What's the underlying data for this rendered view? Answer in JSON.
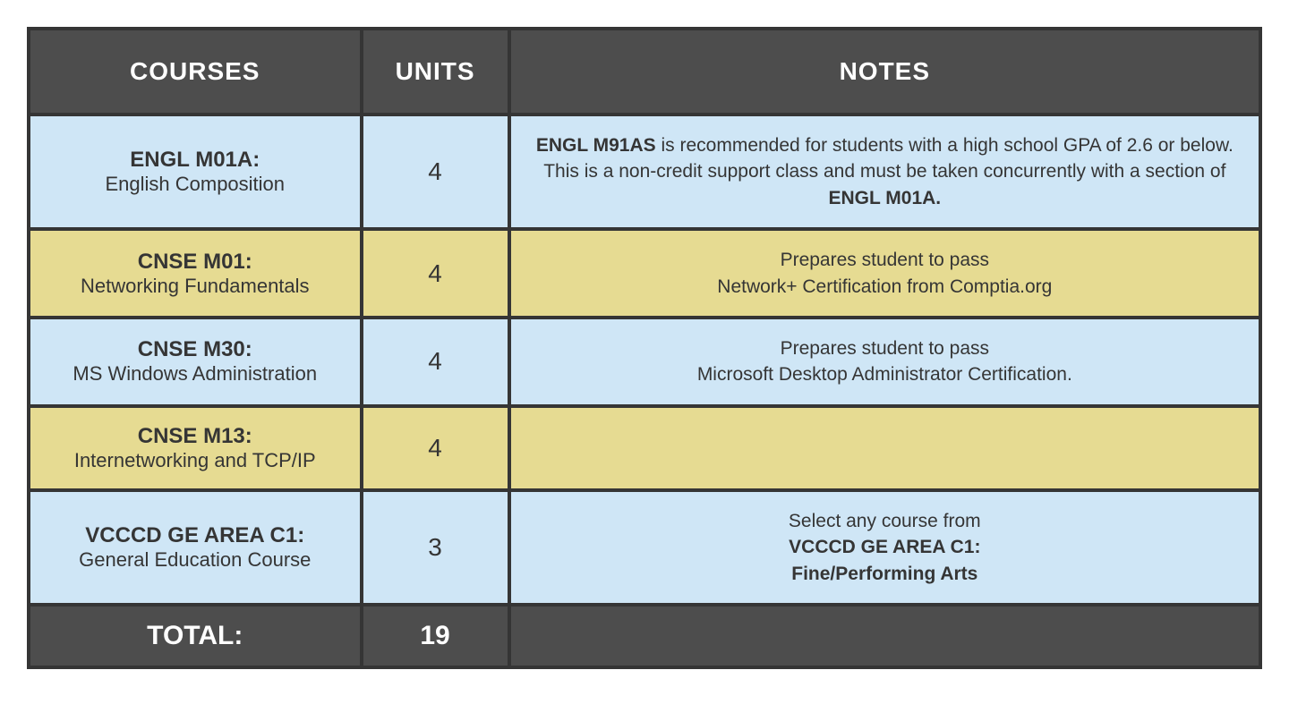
{
  "table": {
    "columns": [
      "COURSES",
      "UNITS",
      "NOTES"
    ],
    "header_bg": "#4d4d4d",
    "header_text_color": "#ffffff",
    "border_color": "#353535",
    "row_blue_bg": "#cfe6f6",
    "row_yellow_bg": "#e6db92",
    "total_bg": "#4d4d4d",
    "rows": [
      {
        "course_code": "ENGL M01A:",
        "course_name": "English Composition",
        "units": "4",
        "notes_pre_bold": "ENGL M91AS",
        "notes_mid": " is recommended for students with a high school GPA of 2.6 or below. This is a non-credit support class and must be taken concurrently with a section of ",
        "notes_post_bold": "ENGL M01A."
      },
      {
        "course_code": "CNSE M01:",
        "course_name": "Networking Fundamentals",
        "units": "4",
        "notes_line1": "Prepares student to pass",
        "notes_line2": "Network+ Certification from Comptia.org"
      },
      {
        "course_code": "CNSE M30:",
        "course_name": "MS Windows Administration",
        "units": "4",
        "notes_line1": "Prepares student to pass",
        "notes_line2": "Microsoft Desktop Administrator Certification."
      },
      {
        "course_code": "CNSE M13:",
        "course_name": "Internetworking and TCP/IP",
        "units": "4",
        "notes": ""
      },
      {
        "course_code": "VCCCD GE AREA C1:",
        "course_name": "General Education Course",
        "units": "3",
        "notes_line1": "Select any course from",
        "notes_bold_line1": "VCCCD GE AREA C1:",
        "notes_bold_line2": "Fine/Performing Arts"
      }
    ],
    "total": {
      "label": "TOTAL:",
      "units": "19"
    }
  }
}
